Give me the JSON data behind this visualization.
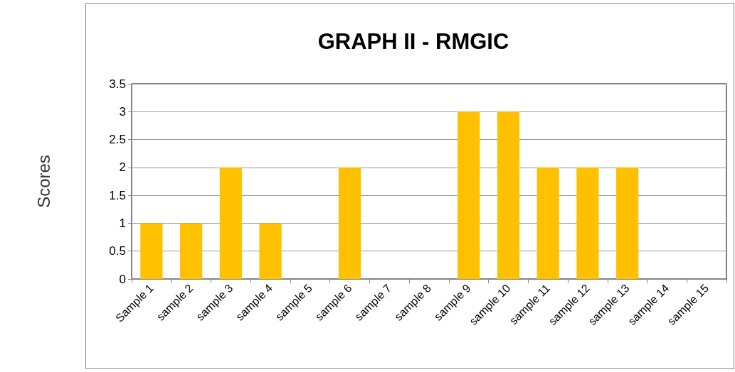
{
  "chart_data": {
    "type": "bar",
    "title": "GRAPH II - RMGIC",
    "ylabel": "Scores",
    "categories": [
      "Sample 1",
      "sample 2",
      "sample 3",
      "sample 4",
      "sample 5",
      "sample 6",
      "sample 7",
      "sample 8",
      "sample 9",
      "sample 10",
      "sample 11",
      "sample 12",
      "sample 13",
      "sample 14",
      "sample 15"
    ],
    "values": [
      1,
      1,
      2,
      1,
      0,
      2,
      0,
      0,
      3,
      3,
      2,
      2,
      2,
      0,
      0
    ],
    "color": "#ffc000",
    "ylim": [
      0,
      3.5
    ],
    "yticks": [
      0,
      0.5,
      1,
      1.5,
      2,
      2.5,
      3,
      3.5
    ],
    "grid": "y"
  }
}
